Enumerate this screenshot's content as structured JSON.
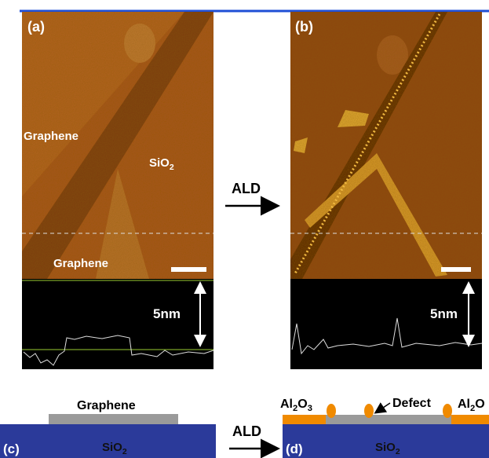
{
  "panels": [
    {
      "label": "(a)",
      "annotations": [
        {
          "parts": [
            "Graphene"
          ]
        },
        {
          "parts": [
            "SiO",
            "2"
          ]
        },
        {
          "parts": [
            "Graphene"
          ]
        }
      ],
      "profile_label": "5nm"
    },
    {
      "label": "(b)",
      "profile_label": "5nm"
    }
  ],
  "arrow_label": "ALD",
  "schematics": [
    {
      "label": "(c)",
      "layer": "Graphene",
      "substrate": [
        "SiO",
        "2"
      ]
    },
    {
      "label": "(d)",
      "substrate": [
        "SiO",
        "2"
      ],
      "callouts": [
        [
          "Al",
          "2",
          "O",
          "3"
        ],
        [
          "Defect"
        ],
        [
          "Al",
          "2",
          "O"
        ]
      ]
    }
  ],
  "schematic_arrow_label": "ALD"
}
